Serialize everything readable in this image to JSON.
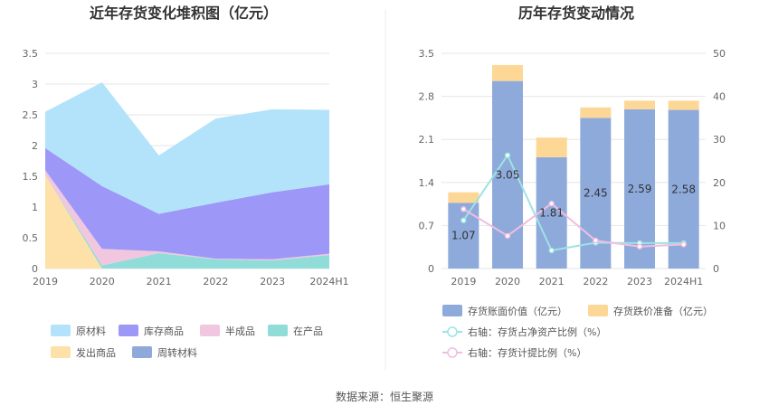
{
  "source_text": "数据来源：恒生聚源",
  "chart_data": [
    {
      "type": "area",
      "stacked": true,
      "title": "近年存货变化堆积图（亿元）",
      "categories": [
        "2019",
        "2020",
        "2021",
        "2022",
        "2023",
        "2024H1"
      ],
      "y_ticks": [
        "0",
        "0.5",
        "1",
        "1.5",
        "2",
        "2.5",
        "3",
        "3.5"
      ],
      "ylim": [
        0,
        3.5
      ],
      "grid": true,
      "legend_position": "bottom",
      "series": [
        {
          "name": "原材料",
          "color": "#b3e3fb",
          "values": [
            0.59,
            1.69,
            0.95,
            1.37,
            1.35,
            1.21
          ]
        },
        {
          "name": "库存商品",
          "color": "#9d97f8",
          "values": [
            0.36,
            1.02,
            0.61,
            0.91,
            1.09,
            1.13
          ]
        },
        {
          "name": "半成品",
          "color": "#f0c7df",
          "values": [
            0.08,
            0.27,
            0.03,
            0.01,
            0.02,
            0.02
          ]
        },
        {
          "name": "在产品",
          "color": "#8fdcd8",
          "values": [
            0.0,
            0.05,
            0.25,
            0.15,
            0.13,
            0.22
          ]
        },
        {
          "name": "发出商品",
          "color": "#fde1a8",
          "values": [
            1.52,
            0.0,
            0.0,
            0.0,
            0.0,
            0.0
          ]
        },
        {
          "name": "周转材料",
          "color": "#8eaadb",
          "values": [
            0,
            0,
            0,
            0,
            0,
            0
          ]
        }
      ]
    },
    {
      "type": "bar",
      "title": "历年存货变动情况",
      "categories": [
        "2019",
        "2020",
        "2021",
        "2022",
        "2023",
        "2024H1"
      ],
      "y_left_ticks": [
        "0",
        "0.7",
        "1.4",
        "2.1",
        "2.8",
        "3.5"
      ],
      "y_left_lim": [
        0,
        3.5
      ],
      "y_right_ticks": [
        "0",
        "10",
        "20",
        "30",
        "40",
        "50"
      ],
      "y_right_lim": [
        0,
        50
      ],
      "grid": true,
      "legend_position": "bottom",
      "series": [
        {
          "name": "存货账面价值（亿元）",
          "color": "#8eaadb",
          "axis": "left",
          "kind": "bar",
          "values": [
            1.07,
            3.05,
            1.81,
            2.45,
            2.59,
            2.58
          ],
          "labels": [
            "1.07",
            "3.05",
            "1.81",
            "2.45",
            "2.59",
            "2.58"
          ]
        },
        {
          "name": "存货跌价准备（亿元）",
          "color": "#fdd795",
          "axis": "left",
          "kind": "bar",
          "values": [
            0.17,
            0.26,
            0.32,
            0.17,
            0.14,
            0.15
          ]
        },
        {
          "name": "右轴：存货占净资产比例（%）",
          "color": "#9de3e3",
          "axis": "right",
          "kind": "line",
          "values": [
            11.2,
            26.3,
            4.2,
            6.0,
            5.9,
            5.9
          ]
        },
        {
          "name": "右轴：存货计提比例（%）",
          "color": "#f1bde0",
          "axis": "right",
          "kind": "line",
          "values": [
            13.8,
            7.6,
            15.1,
            6.5,
            5.1,
            5.6
          ]
        }
      ]
    }
  ]
}
